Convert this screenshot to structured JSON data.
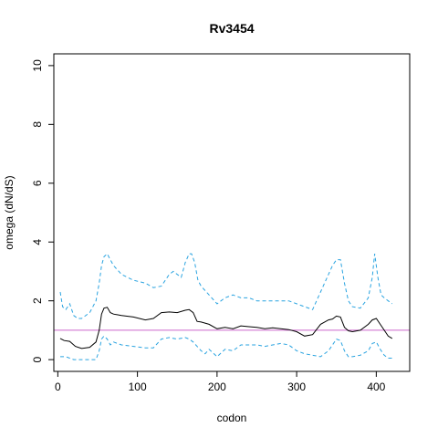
{
  "chart_data": {
    "type": "line",
    "title": "Rv3454",
    "xlabel": "codon",
    "ylabel": "omega (dN/dS)",
    "xlim": [
      -5,
      442
    ],
    "ylim": [
      -0.4,
      10.4
    ],
    "x_ticks": [
      0,
      100,
      200,
      300,
      400
    ],
    "y_ticks": [
      0,
      2,
      4,
      6,
      8,
      10
    ],
    "grid": false,
    "reference_line": {
      "y": 1,
      "color": "#cc66cc"
    },
    "series": [
      {
        "style": "solid",
        "color": "#000000",
        "x": [
          3,
          8,
          15,
          22,
          30,
          40,
          48,
          52,
          55,
          58,
          62,
          66,
          70,
          80,
          95,
          110,
          120,
          130,
          140,
          150,
          160,
          165,
          170,
          175,
          180,
          190,
          200,
          210,
          220,
          230,
          240,
          250,
          260,
          270,
          280,
          290,
          300,
          310,
          320,
          330,
          340,
          345,
          350,
          355,
          360,
          365,
          370,
          380,
          390,
          395,
          400,
          405,
          410,
          415,
          420
        ],
        "y": [
          0.72,
          0.65,
          0.62,
          0.45,
          0.38,
          0.42,
          0.6,
          1.0,
          1.55,
          1.75,
          1.78,
          1.6,
          1.55,
          1.5,
          1.45,
          1.35,
          1.4,
          1.6,
          1.62,
          1.6,
          1.68,
          1.7,
          1.6,
          1.3,
          1.28,
          1.2,
          1.05,
          1.1,
          1.05,
          1.15,
          1.12,
          1.1,
          1.05,
          1.08,
          1.05,
          1.02,
          0.95,
          0.8,
          0.85,
          1.2,
          1.35,
          1.38,
          1.48,
          1.45,
          1.1,
          0.98,
          0.95,
          1.0,
          1.2,
          1.35,
          1.4,
          1.2,
          1.0,
          0.8,
          0.72
        ]
      },
      {
        "style": "dashed",
        "color": "#29a3e0",
        "x": [
          3,
          6,
          10,
          15,
          20,
          25,
          30,
          40,
          48,
          52,
          55,
          58,
          62,
          66,
          70,
          80,
          95,
          110,
          120,
          130,
          140,
          145,
          150,
          155,
          160,
          165,
          168,
          172,
          176,
          180,
          190,
          200,
          210,
          220,
          230,
          240,
          250,
          260,
          270,
          280,
          290,
          300,
          310,
          320,
          330,
          340,
          345,
          350,
          355,
          360,
          365,
          370,
          380,
          390,
          395,
          398,
          402,
          406,
          410,
          415,
          420
        ],
        "y": [
          2.3,
          1.8,
          1.7,
          1.9,
          1.5,
          1.4,
          1.4,
          1.6,
          2.0,
          2.6,
          3.2,
          3.5,
          3.6,
          3.4,
          3.2,
          2.9,
          2.7,
          2.6,
          2.45,
          2.5,
          2.9,
          3.0,
          2.9,
          2.8,
          3.3,
          3.6,
          3.6,
          3.3,
          2.7,
          2.5,
          2.2,
          1.9,
          2.1,
          2.2,
          2.1,
          2.1,
          2.0,
          2.0,
          2.0,
          2.0,
          2.0,
          1.9,
          1.8,
          1.7,
          2.3,
          2.9,
          3.2,
          3.4,
          3.4,
          2.6,
          2.0,
          1.8,
          1.75,
          2.1,
          2.8,
          3.6,
          2.8,
          2.2,
          2.1,
          2.0,
          1.9
        ]
      },
      {
        "style": "dashed",
        "color": "#29a3e0",
        "x": [
          3,
          10,
          15,
          20,
          25,
          30,
          40,
          48,
          52,
          55,
          58,
          62,
          66,
          70,
          80,
          95,
          110,
          120,
          130,
          140,
          150,
          160,
          165,
          170,
          175,
          180,
          185,
          190,
          200,
          210,
          220,
          230,
          240,
          250,
          260,
          270,
          280,
          290,
          300,
          310,
          320,
          330,
          340,
          345,
          350,
          355,
          360,
          365,
          370,
          380,
          390,
          395,
          400,
          405,
          410,
          415,
          420
        ],
        "y": [
          0.1,
          0.1,
          0.05,
          0.0,
          0.0,
          0.0,
          0.0,
          0.0,
          0.3,
          0.7,
          0.8,
          0.7,
          0.5,
          0.6,
          0.5,
          0.45,
          0.4,
          0.4,
          0.7,
          0.75,
          0.7,
          0.75,
          0.7,
          0.6,
          0.45,
          0.3,
          0.2,
          0.35,
          0.1,
          0.35,
          0.3,
          0.5,
          0.5,
          0.5,
          0.45,
          0.5,
          0.55,
          0.5,
          0.3,
          0.2,
          0.15,
          0.1,
          0.3,
          0.5,
          0.7,
          0.65,
          0.3,
          0.1,
          0.1,
          0.15,
          0.3,
          0.55,
          0.6,
          0.35,
          0.15,
          0.05,
          0.05
        ]
      }
    ]
  }
}
